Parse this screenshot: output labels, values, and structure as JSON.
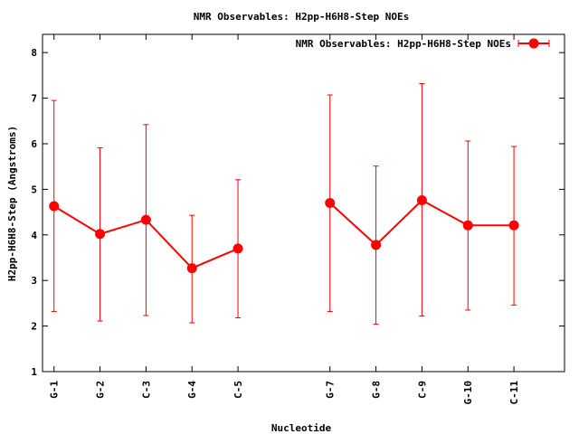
{
  "chart_data": {
    "type": "line",
    "title": "NMR Observables: H2pp-H6H8-Step NOEs",
    "xlabel": "Nucleotide",
    "ylabel": "H2pp-H6H8-Step (Angstroms)",
    "ylim": [
      1,
      8.4
    ],
    "yticks": [
      1,
      2,
      3,
      4,
      5,
      6,
      7,
      8
    ],
    "xlim": [
      0.75,
      12.1
    ],
    "grid": false,
    "legend_position": "top-right",
    "x": [
      1,
      2,
      3,
      4,
      5,
      7,
      8,
      9,
      10,
      11
    ],
    "categories": [
      "G-1",
      "G-2",
      "C-3",
      "G-4",
      "C-5",
      "G-7",
      "G-8",
      "C-9",
      "G-10",
      "C-11"
    ],
    "series": [
      {
        "name": "NMR Observables: H2pp-H6H8-Step NOEs",
        "color": "#ff0000",
        "segments": [
          [
            0,
            4
          ],
          [
            5,
            9
          ]
        ],
        "values": [
          4.63,
          4.02,
          4.33,
          3.27,
          3.7,
          4.7,
          3.78,
          4.76,
          4.21,
          4.21
        ],
        "err_low": [
          2.32,
          2.11,
          2.23,
          2.07,
          2.18,
          2.32,
          2.04,
          2.22,
          2.35,
          2.46
        ],
        "err_high": [
          6.95,
          5.91,
          6.42,
          4.43,
          5.21,
          7.07,
          5.51,
          7.32,
          6.06,
          5.94
        ]
      }
    ]
  }
}
